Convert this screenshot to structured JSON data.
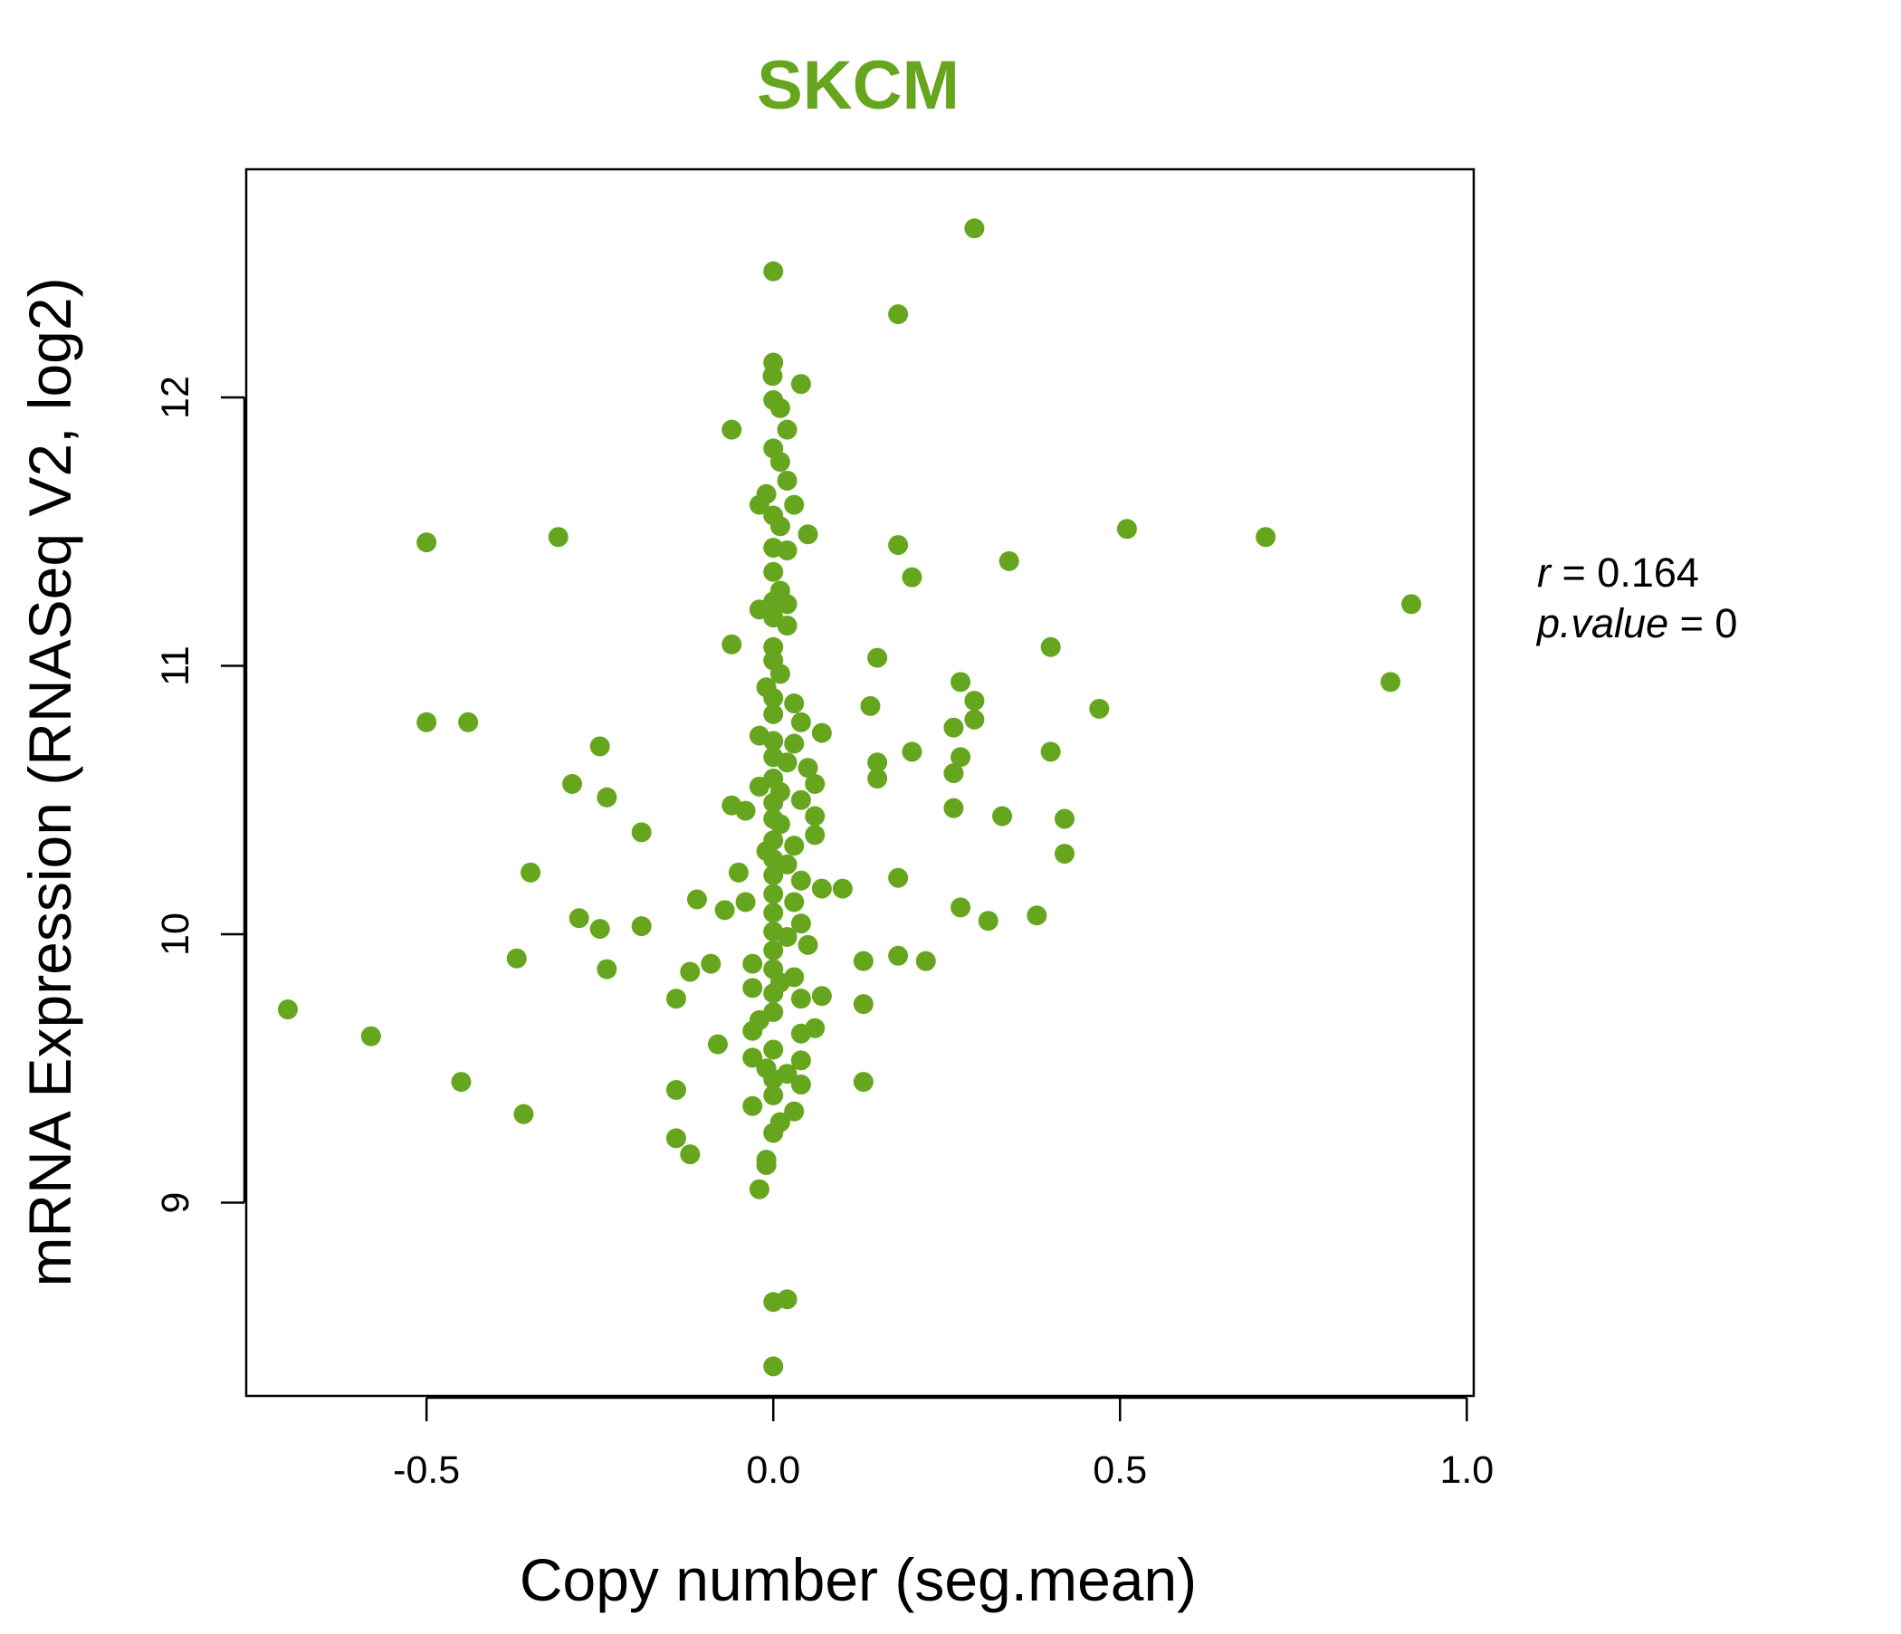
{
  "chart_data": {
    "type": "scatter",
    "title": "SKCM",
    "xlabel": "Copy number (seg.mean)",
    "ylabel": "mRNA Expression (RNASeq V2, log2)",
    "xlim": [
      -0.76,
      1.01
    ],
    "ylim": [
      8.28,
      12.85
    ],
    "x_ticks": [
      -0.5,
      0.0,
      0.5,
      1.0
    ],
    "x_tick_labels": [
      "-0.5",
      "0.0",
      "0.5",
      "1.0"
    ],
    "y_ticks": [
      9,
      10,
      11,
      12
    ],
    "y_tick_labels": [
      "9",
      "10",
      "11",
      "12"
    ],
    "grid": false,
    "legend": "none",
    "point_color": "#66a61e",
    "stats": {
      "r_label": "r",
      "r_value": "0.164",
      "p_label": "p.value",
      "p_value": "0"
    },
    "series": [
      {
        "points": [
          [
            0.29,
            12.63
          ],
          [
            0.0,
            12.47
          ],
          [
            0.18,
            12.31
          ],
          [
            0.0,
            12.13
          ],
          [
            -0.001,
            12.08
          ],
          [
            0.04,
            12.05
          ],
          [
            0.0,
            11.99
          ],
          [
            0.01,
            11.96
          ],
          [
            -0.06,
            11.88
          ],
          [
            0.02,
            11.88
          ],
          [
            0.0,
            11.81
          ],
          [
            0.01,
            11.76
          ],
          [
            0.02,
            11.69
          ],
          [
            -0.01,
            11.64
          ],
          [
            -0.02,
            11.6
          ],
          [
            0.03,
            11.6
          ],
          [
            0.0,
            11.56
          ],
          [
            0.01,
            11.52
          ],
          [
            0.05,
            11.49
          ],
          [
            -0.5,
            11.46
          ],
          [
            -0.31,
            11.48
          ],
          [
            0.51,
            11.51
          ],
          [
            0.71,
            11.48
          ],
          [
            0.18,
            11.45
          ],
          [
            0.0,
            11.44
          ],
          [
            0.02,
            11.43
          ],
          [
            0.34,
            11.39
          ],
          [
            0.0,
            11.35
          ],
          [
            0.2,
            11.33
          ],
          [
            0.01,
            11.28
          ],
          [
            0.0,
            11.24
          ],
          [
            0.02,
            11.23
          ],
          [
            0.92,
            11.23
          ],
          [
            -0.02,
            11.21
          ],
          [
            0.0,
            11.18
          ],
          [
            0.02,
            11.15
          ],
          [
            -0.06,
            11.08
          ],
          [
            0.0,
            11.07
          ],
          [
            0.4,
            11.07
          ],
          [
            0.15,
            11.03
          ],
          [
            0.0,
            11.02
          ],
          [
            0.01,
            10.97
          ],
          [
            0.27,
            10.94
          ],
          [
            0.89,
            10.94
          ],
          [
            -0.01,
            10.92
          ],
          [
            0.0,
            10.88
          ],
          [
            0.03,
            10.86
          ],
          [
            0.29,
            10.87
          ],
          [
            0.14,
            10.85
          ],
          [
            0.47,
            10.84
          ],
          [
            0.0,
            10.82
          ],
          [
            -0.5,
            10.79
          ],
          [
            -0.44,
            10.79
          ],
          [
            0.04,
            10.79
          ],
          [
            0.29,
            10.8
          ],
          [
            0.26,
            10.77
          ],
          [
            0.07,
            10.75
          ],
          [
            -0.02,
            10.74
          ],
          [
            0.0,
            10.72
          ],
          [
            0.03,
            10.71
          ],
          [
            -0.25,
            10.7
          ],
          [
            0.2,
            10.68
          ],
          [
            0.4,
            10.68
          ],
          [
            0.0,
            10.66
          ],
          [
            0.02,
            10.64
          ],
          [
            0.15,
            10.64
          ],
          [
            0.27,
            10.66
          ],
          [
            0.05,
            10.62
          ],
          [
            0.26,
            10.6
          ],
          [
            0.15,
            10.58
          ],
          [
            0.0,
            10.58
          ],
          [
            -0.29,
            10.56
          ],
          [
            0.06,
            10.56
          ],
          [
            -0.02,
            10.55
          ],
          [
            0.01,
            10.53
          ],
          [
            -0.24,
            10.51
          ],
          [
            0.04,
            10.5
          ],
          [
            0.0,
            10.49
          ],
          [
            -0.06,
            10.48
          ],
          [
            -0.04,
            10.46
          ],
          [
            0.26,
            10.47
          ],
          [
            0.33,
            10.44
          ],
          [
            0.06,
            10.44
          ],
          [
            0.0,
            10.43
          ],
          [
            0.42,
            10.43
          ],
          [
            0.01,
            10.41
          ],
          [
            -0.19,
            10.38
          ],
          [
            0.06,
            10.37
          ],
          [
            0.0,
            10.35
          ],
          [
            0.03,
            10.33
          ],
          [
            -0.01,
            10.31
          ],
          [
            0.42,
            10.3
          ],
          [
            0.0,
            10.28
          ],
          [
            0.02,
            10.26
          ],
          [
            -0.35,
            10.23
          ],
          [
            -0.05,
            10.23
          ],
          [
            0.0,
            10.22
          ],
          [
            0.18,
            10.21
          ],
          [
            0.04,
            10.2
          ],
          [
            0.07,
            10.17
          ],
          [
            0.1,
            10.17
          ],
          [
            0.0,
            10.15
          ],
          [
            -0.11,
            10.13
          ],
          [
            -0.04,
            10.12
          ],
          [
            0.03,
            10.12
          ],
          [
            -0.07,
            10.09
          ],
          [
            0.27,
            10.1
          ],
          [
            0.0,
            10.08
          ],
          [
            0.38,
            10.07
          ],
          [
            -0.28,
            10.06
          ],
          [
            0.31,
            10.05
          ],
          [
            0.04,
            10.04
          ],
          [
            -0.19,
            10.03
          ],
          [
            -0.25,
            10.02
          ],
          [
            0.0,
            10.01
          ],
          [
            0.02,
            9.99
          ],
          [
            0.05,
            9.96
          ],
          [
            0.0,
            9.94
          ],
          [
            0.18,
            9.92
          ],
          [
            -0.37,
            9.91
          ],
          [
            0.13,
            9.9
          ],
          [
            0.22,
            9.9
          ],
          [
            -0.09,
            9.89
          ],
          [
            -0.03,
            9.89
          ],
          [
            0.0,
            9.87
          ],
          [
            -0.24,
            9.87
          ],
          [
            -0.12,
            9.86
          ],
          [
            0.03,
            9.84
          ],
          [
            0.01,
            9.82
          ],
          [
            -0.03,
            9.8
          ],
          [
            0.0,
            9.78
          ],
          [
            0.07,
            9.77
          ],
          [
            -0.14,
            9.76
          ],
          [
            0.04,
            9.76
          ],
          [
            0.13,
            9.74
          ],
          [
            -0.7,
            9.72
          ],
          [
            0.0,
            9.71
          ],
          [
            -0.02,
            9.68
          ],
          [
            0.06,
            9.65
          ],
          [
            -0.03,
            9.64
          ],
          [
            0.04,
            9.63
          ],
          [
            -0.58,
            9.62
          ],
          [
            -0.08,
            9.59
          ],
          [
            0.0,
            9.57
          ],
          [
            -0.03,
            9.54
          ],
          [
            0.04,
            9.53
          ],
          [
            -0.01,
            9.5
          ],
          [
            0.02,
            9.48
          ],
          [
            0.0,
            9.46
          ],
          [
            -0.45,
            9.45
          ],
          [
            0.04,
            9.44
          ],
          [
            0.13,
            9.45
          ],
          [
            -0.14,
            9.42
          ],
          [
            0.0,
            9.4
          ],
          [
            -0.03,
            9.36
          ],
          [
            0.03,
            9.34
          ],
          [
            -0.36,
            9.33
          ],
          [
            0.01,
            9.3
          ],
          [
            0.0,
            9.26
          ],
          [
            -0.14,
            9.24
          ],
          [
            -0.12,
            9.18
          ],
          [
            -0.01,
            9.16
          ],
          [
            -0.01,
            9.14
          ],
          [
            -0.02,
            9.05
          ],
          [
            0.02,
            8.64
          ],
          [
            0.0,
            8.63
          ],
          [
            0.0,
            8.39
          ]
        ]
      }
    ]
  }
}
